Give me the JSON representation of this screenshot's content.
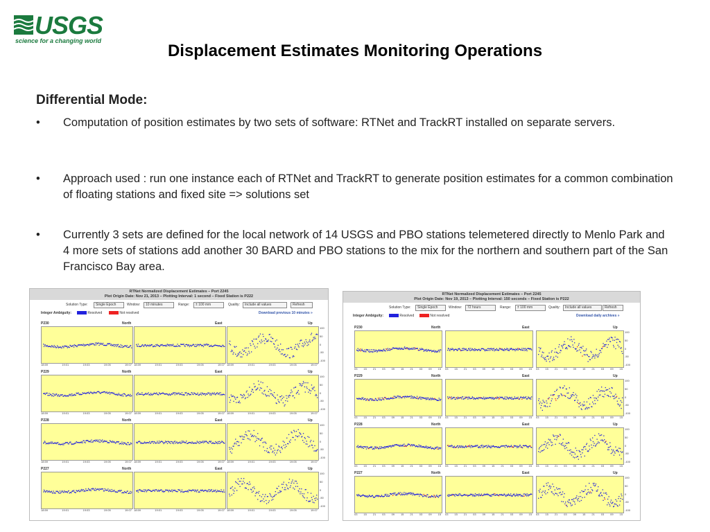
{
  "logo": {
    "word": "USGS",
    "tagline": "science for a changing world",
    "color": "#1b7a3e"
  },
  "slide": {
    "title": "Displacement Estimates Monitoring Operations",
    "section": "Differential Mode:",
    "bullets": [
      {
        "marker": "•",
        "text": "Computation of position estimates by two sets of software: RTNet and TrackRT installed on separate servers."
      },
      {
        "marker": "•",
        "text": "Approach used : run one instance each of RTNet and TrackRT to generate position estimates for a common combination of  floating stations and fixed site =>  solutions set"
      },
      {
        "marker": "•",
        "text": "Currently 3 sets are defined for the local network of 14 USGS and PBO stations telemetered directly to Menlo Park and  4 more  sets of stations add another 30 BARD and PBO stations to the mix for the northern and southern part of the San Francisco Bay area."
      }
    ]
  },
  "left_panel": {
    "title": "RTNet Normalized Displacement Estimates – Port 2245",
    "subtitle": "Plot Origin Date: Nov 21, 2013 – Plotting Interval: 1 second – Fixed Station is P222",
    "controls": {
      "solution_type_label": "Solution Type:",
      "solution_type": "Single Epoch",
      "window_label": "Window:",
      "window": "10 minutes",
      "range_label": "Range:",
      "range": "± 100 mm",
      "quality_label": "Quality:",
      "quality": "Include all values",
      "refresh": "Refresh"
    },
    "legend": {
      "label": "Integer Ambiguity:",
      "resolved": "Resolved",
      "not_resolved": "Not resolved",
      "download": "Download previous 10 minutes »"
    },
    "stations": [
      "P230",
      "P229",
      "P228",
      "P227"
    ],
    "x_ticks": [
      "18:59",
      "19:01",
      "19:03",
      "19:05",
      "19:07"
    ]
  },
  "right_panel": {
    "title": "RTNet Normalized Displacement Estimates – Port 2245",
    "subtitle": "Plot Origin Date: Nov 19, 2013 – Plotting Interval: 150 seconds – Fixed Station is P222",
    "controls": {
      "solution_type_label": "Solution Type:",
      "solution_type": "Single Epoch",
      "window_label": "Window:",
      "window": "72 hours",
      "range_label": "Range:",
      "range": "± 100 mm",
      "quality_label": "Quality:",
      "quality": "Include all values",
      "refresh": "Refresh"
    },
    "legend": {
      "label": "Integer Ambiguity:",
      "resolved": "Resolved",
      "not_resolved": "Not resolved",
      "download": "Download daily archives »"
    },
    "stations": [
      "P230",
      "P229",
      "P228",
      "P227"
    ],
    "x_ticks": [
      "03",
      "15",
      "21",
      "03",
      "09",
      "15",
      "21",
      "03",
      "09",
      "15"
    ]
  },
  "plot_labels": {
    "north": "North",
    "east": "East",
    "up": "Up"
  },
  "y_ticks": [
    "100",
    "50",
    "0",
    "-50",
    "-100"
  ],
  "colors": {
    "resolved": "#2222dd",
    "not_resolved": "#ee2222",
    "plot_bg": "#ffff99"
  }
}
